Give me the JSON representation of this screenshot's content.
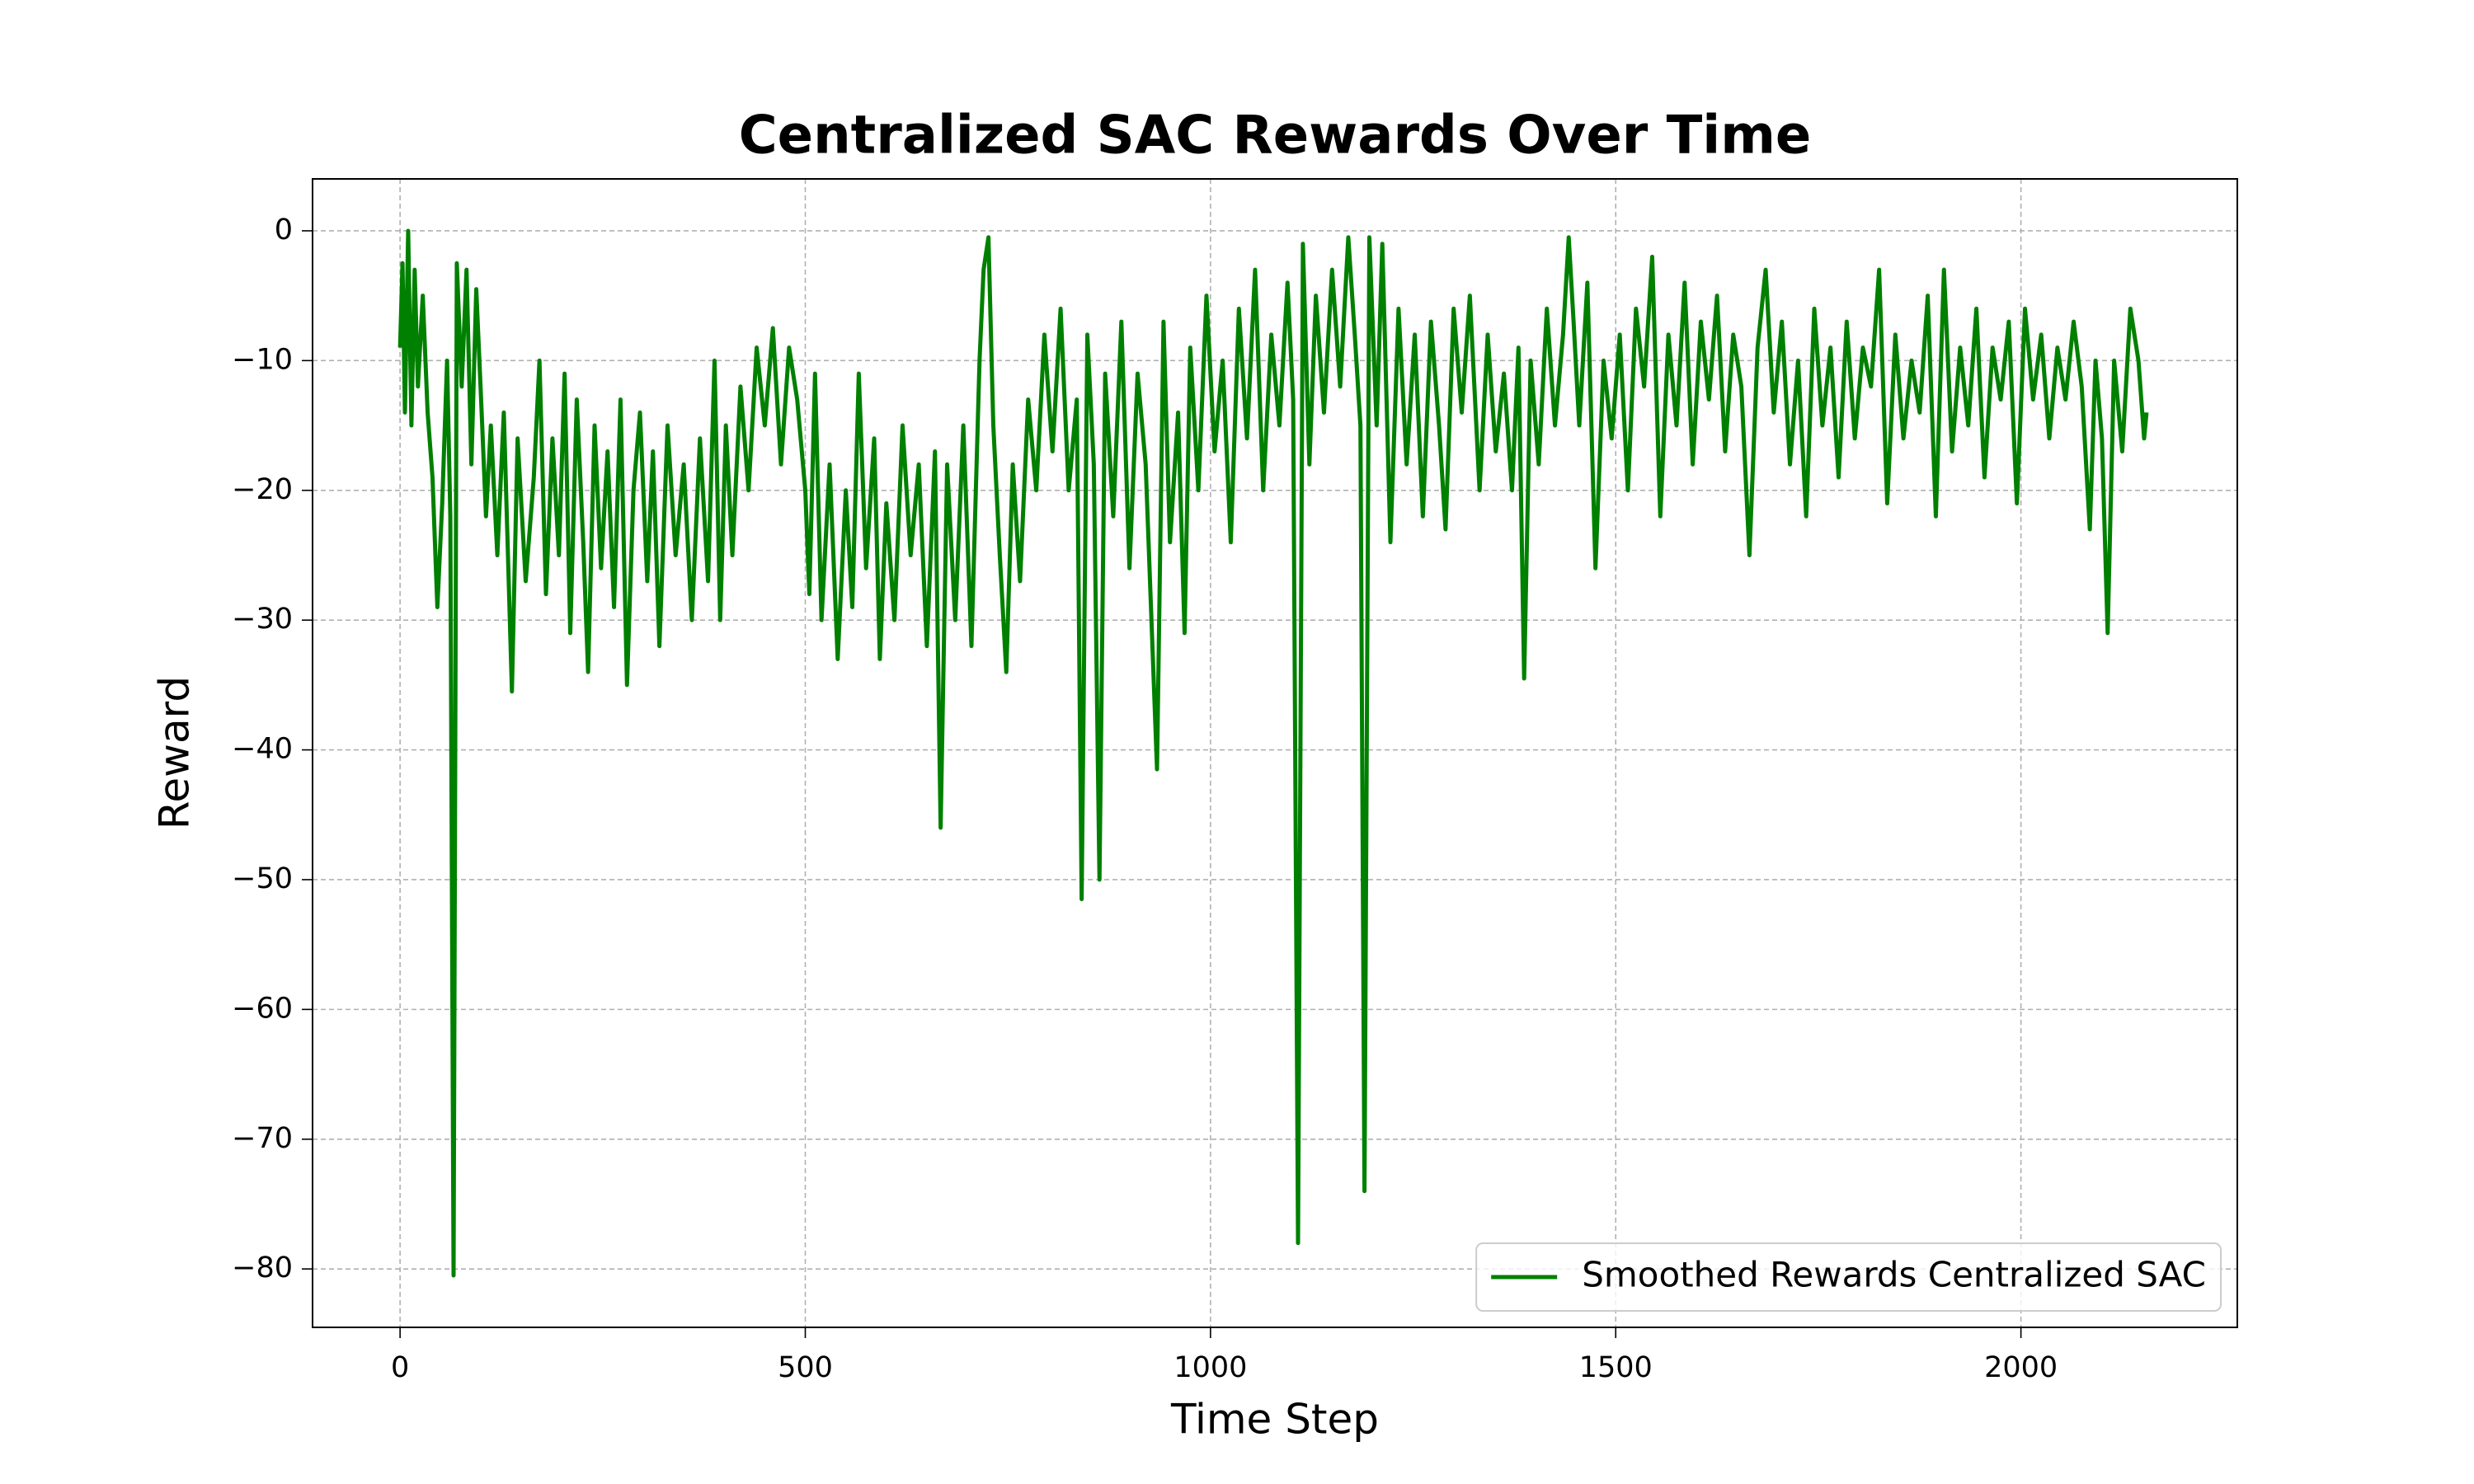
{
  "chart_data": {
    "type": "line",
    "title": "Centralized SAC Rewards Over Time",
    "x_label": "Time Step",
    "y_label": "Reward",
    "xlim": [
      -108,
      2267
    ],
    "ylim": [
      -84.5,
      4.0
    ],
    "xticks": [
      0,
      500,
      1000,
      1500,
      2000
    ],
    "yticks": [
      0,
      {
        "value": -10,
        "label": "−10"
      },
      {
        "value": -20,
        "label": "−20"
      },
      {
        "value": -30,
        "label": "−30"
      },
      {
        "value": -40,
        "label": "−40"
      },
      {
        "value": -50,
        "label": "−50"
      },
      {
        "value": -60,
        "label": "−60"
      },
      {
        "value": -70,
        "label": "−70"
      },
      {
        "value": -80,
        "label": "−80"
      }
    ],
    "grid": true,
    "legend": "lower right",
    "series": [
      {
        "name": "Smoothed Rewards Centralized SAC",
        "color": "#008000",
        "x": [
          0,
          3,
          6,
          10,
          14,
          18,
          22,
          28,
          34,
          40,
          46,
          52,
          58,
          62,
          66,
          70,
          76,
          82,
          88,
          94,
          100,
          106,
          112,
          120,
          128,
          138,
          145,
          155,
          165,
          172,
          180,
          188,
          196,
          203,
          210,
          218,
          226,
          232,
          240,
          248,
          256,
          264,
          272,
          280,
          288,
          296,
          305,
          312,
          320,
          330,
          340,
          350,
          360,
          370,
          380,
          388,
          395,
          402,
          410,
          420,
          430,
          440,
          450,
          460,
          470,
          480,
          490,
          500,
          505,
          512,
          520,
          530,
          540,
          550,
          558,
          566,
          575,
          585,
          592,
          600,
          610,
          620,
          630,
          640,
          650,
          660,
          667,
          675,
          685,
          695,
          705,
          715,
          720,
          726,
          732,
          740,
          748,
          756,
          765,
          775,
          785,
          795,
          805,
          815,
          825,
          835,
          841,
          848,
          856,
          863,
          870,
          880,
          890,
          900,
          910,
          920,
          934,
          942,
          950,
          960,
          968,
          975,
          985,
          995,
          1005,
          1015,
          1025,
          1035,
          1045,
          1055,
          1065,
          1075,
          1085,
          1095,
          1102,
          1108,
          1114,
          1122,
          1130,
          1140,
          1150,
          1160,
          1170,
          1178,
          1185,
          1190,
          1196,
          1205,
          1212,
          1222,
          1232,
          1242,
          1252,
          1262,
          1272,
          1282,
          1290,
          1300,
          1310,
          1320,
          1332,
          1342,
          1352,
          1362,
          1372,
          1380,
          1387,
          1395,
          1405,
          1415,
          1425,
          1435,
          1442,
          1448,
          1455,
          1465,
          1475,
          1485,
          1495,
          1505,
          1515,
          1525,
          1535,
          1545,
          1555,
          1565,
          1575,
          1585,
          1595,
          1605,
          1615,
          1625,
          1635,
          1645,
          1655,
          1665,
          1675,
          1685,
          1695,
          1705,
          1715,
          1725,
          1735,
          1745,
          1755,
          1765,
          1775,
          1785,
          1795,
          1805,
          1815,
          1825,
          1835,
          1845,
          1855,
          1865,
          1875,
          1885,
          1895,
          1905,
          1915,
          1925,
          1935,
          1945,
          1955,
          1965,
          1975,
          1985,
          1995,
          2005,
          2015,
          2025,
          2035,
          2045,
          2055,
          2065,
          2075,
          2085,
          2092,
          2100,
          2107,
          2115,
          2125,
          2135,
          2145,
          2152,
          2155
        ],
        "values": [
          -9,
          -2.5,
          -14,
          0,
          -15,
          -3,
          -12,
          -5,
          -14,
          -19,
          -29,
          -21,
          -10,
          -22,
          -80.5,
          -2.5,
          -12,
          -3,
          -18,
          -4.5,
          -13,
          -22,
          -15,
          -25,
          -14,
          -35.5,
          -16,
          -27,
          -19,
          -10,
          -28,
          -16,
          -25,
          -11,
          -31,
          -13,
          -24,
          -34,
          -15,
          -26,
          -17,
          -29,
          -13,
          -35,
          -20,
          -14,
          -27,
          -17,
          -32,
          -15,
          -25,
          -18,
          -30,
          -16,
          -27,
          -10,
          -30,
          -15,
          -25,
          -12,
          -20,
          -9,
          -15,
          -7.5,
          -18,
          -9,
          -13,
          -20,
          -28,
          -11,
          -30,
          -18,
          -33,
          -20,
          -29,
          -11,
          -26,
          -16,
          -33,
          -21,
          -30,
          -15,
          -25,
          -18,
          -32,
          -17,
          -46,
          -18,
          -30,
          -15,
          -32,
          -10,
          -3,
          -0.5,
          -15,
          -25,
          -34,
          -18,
          -27,
          -13,
          -20,
          -8,
          -17,
          -6,
          -20,
          -13,
          -51.5,
          -8,
          -18,
          -50,
          -11,
          -22,
          -7,
          -26,
          -11,
          -18,
          -41.5,
          -7,
          -24,
          -14,
          -31,
          -9,
          -20,
          -5,
          -17,
          -10,
          -24,
          -6,
          -16,
          -3,
          -20,
          -8,
          -15,
          -4,
          -13,
          -78,
          -1,
          -18,
          -5,
          -14,
          -3,
          -12,
          -0.5,
          -8,
          -15,
          -74,
          -0.5,
          -15,
          -1,
          -24,
          -6,
          -18,
          -8,
          -22,
          -7,
          -15,
          -23,
          -6,
          -14,
          -5,
          -20,
          -8,
          -17,
          -11,
          -20,
          -9,
          -34.5,
          -10,
          -18,
          -6,
          -15,
          -8,
          -0.5,
          -7,
          -15,
          -4,
          -26,
          -10,
          -16,
          -8,
          -20,
          -6,
          -12,
          -2,
          -22,
          -8,
          -15,
          -4,
          -18,
          -7,
          -13,
          -5,
          -17,
          -8,
          -12,
          -25,
          -9,
          -3,
          -14,
          -7,
          -18,
          -10,
          -22,
          -6,
          -15,
          -9,
          -19,
          -7,
          -16,
          -9,
          -12,
          -3,
          -21,
          -8,
          -16,
          -10,
          -14,
          -5,
          -22,
          -3,
          -17,
          -9,
          -15,
          -6,
          -19,
          -9,
          -13,
          -7,
          -21,
          -6,
          -13,
          -8,
          -16,
          -9,
          -13,
          -7,
          -12,
          -23,
          -10,
          -16,
          -31,
          -10,
          -17,
          -6,
          -10,
          -16,
          -14
        ]
      }
    ]
  }
}
